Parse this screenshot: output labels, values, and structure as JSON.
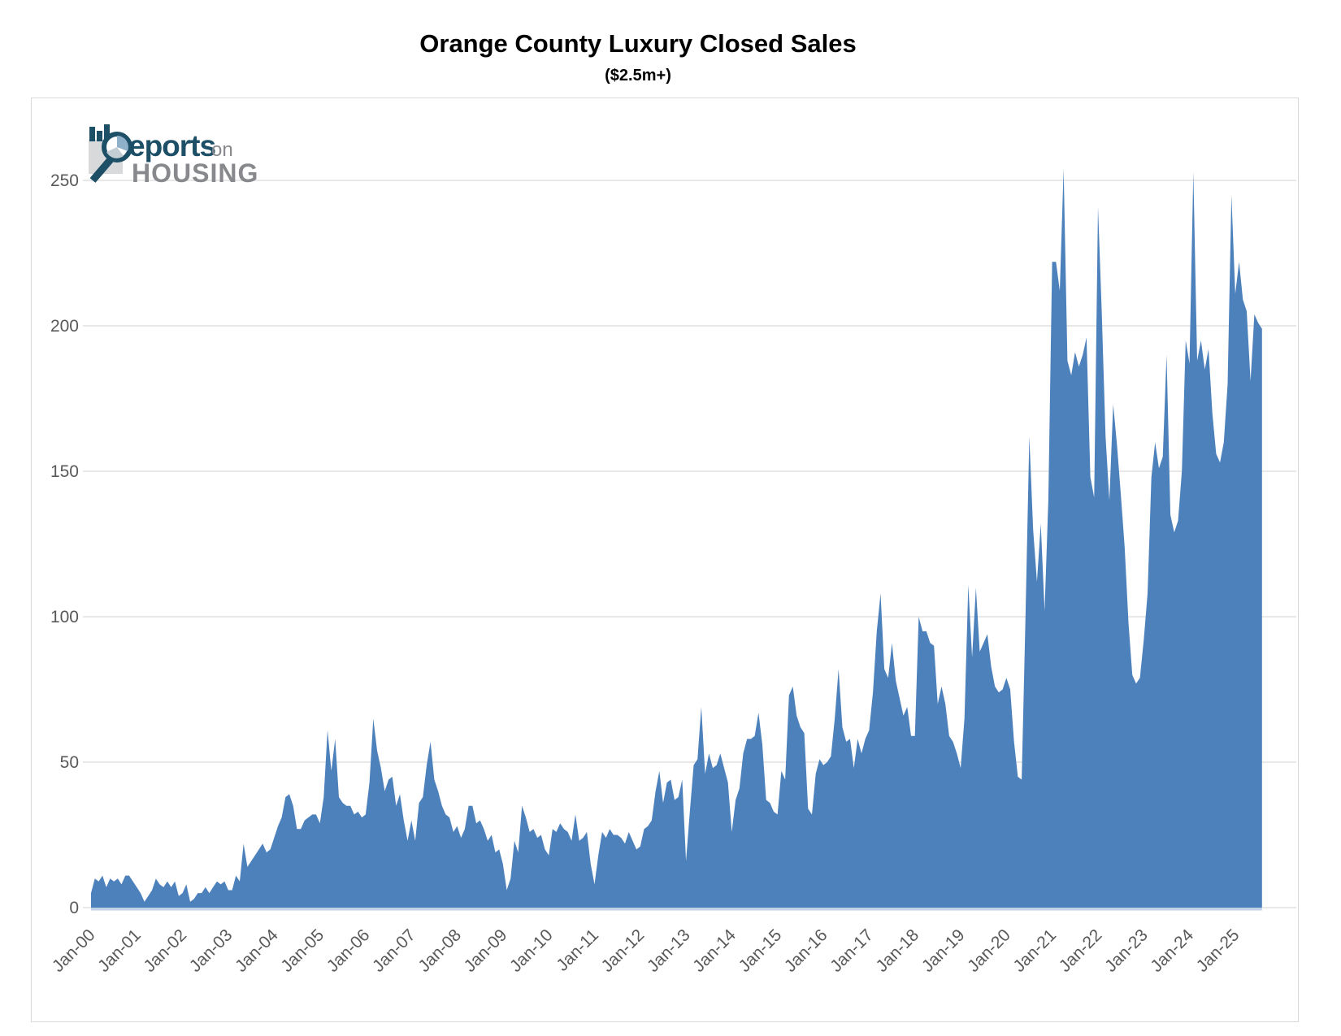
{
  "title": "Orange County Luxury Closed Sales",
  "subtitle": "($2.5m+)",
  "logo": {
    "word_top": "eports",
    "word_top_suffix": "on",
    "word_bottom": "HOUSING",
    "navy": "#1d4f66",
    "gray": "#87898c",
    "light_blue": "#8fb0c9",
    "square_gray": "#d8d9da"
  },
  "chart_data": {
    "type": "area",
    "series_name": "Luxury closed sales ($2.5m+), monthly",
    "fill_color": "#4d81bc",
    "baseline_shadow_color": "#b4c9e2",
    "grid": true,
    "grid_color": "#d9d9d9",
    "axis_label_color": "#595959",
    "frequency": "monthly",
    "start": "Jan-2000",
    "end": "Aug-2025",
    "x_tick_labels": [
      "Jan-00",
      "Jan-01",
      "Jan-02",
      "Jan-03",
      "Jan-04",
      "Jan-05",
      "Jan-06",
      "Jan-07",
      "Jan-08",
      "Jan-09",
      "Jan-10",
      "Jan-11",
      "Jan-12",
      "Jan-13",
      "Jan-14",
      "Jan-15",
      "Jan-16",
      "Jan-17",
      "Jan-18",
      "Jan-19",
      "Jan-20",
      "Jan-21",
      "Jan-22",
      "Jan-23",
      "Jan-24",
      "Jan-25"
    ],
    "y_ticks": [
      0,
      50,
      100,
      150,
      200,
      250
    ],
    "ylim": [
      0,
      260
    ],
    "values": [
      5,
      10,
      9,
      11,
      7,
      10,
      9,
      10,
      8,
      11,
      11,
      9,
      7,
      5,
      2,
      4,
      6,
      10,
      8,
      7,
      9,
      7,
      9,
      4,
      5,
      8,
      2,
      3,
      5,
      5,
      7,
      5,
      7,
      9,
      8,
      9,
      6,
      6,
      11,
      9,
      22,
      14,
      16,
      18,
      20,
      22,
      19,
      20,
      24,
      28,
      31,
      38,
      39,
      35,
      27,
      27,
      30,
      31,
      32,
      32,
      29,
      38,
      61,
      47,
      58,
      38,
      36,
      35,
      35,
      32,
      33,
      31,
      32,
      43,
      65,
      54,
      48,
      40,
      44,
      45,
      35,
      39,
      30,
      23,
      30,
      23,
      36,
      38,
      49,
      57,
      44,
      40,
      35,
      32,
      31,
      26,
      28,
      24,
      27,
      35,
      35,
      29,
      30,
      27,
      23,
      25,
      19,
      20,
      15,
      6,
      10,
      23,
      19,
      35,
      31,
      26,
      27,
      24,
      25,
      20,
      18,
      27,
      26,
      29,
      27,
      26,
      23,
      32,
      23,
      24,
      26,
      15,
      8,
      18,
      26,
      24,
      27,
      25,
      25,
      24,
      22,
      26,
      23,
      20,
      21,
      27,
      28,
      30,
      40,
      47,
      36,
      43,
      44,
      37,
      38,
      44,
      16,
      33,
      49,
      51,
      69,
      46,
      53,
      48,
      49,
      53,
      48,
      43,
      26,
      37,
      41,
      53,
      58,
      58,
      59,
      67,
      56,
      37,
      36,
      33,
      32,
      47,
      44,
      73,
      76,
      66,
      62,
      60,
      34,
      32,
      46,
      51,
      49,
      50,
      52,
      65,
      82,
      62,
      57,
      58,
      48,
      58,
      53,
      58,
      61,
      74,
      95,
      108,
      82,
      79,
      91,
      78,
      72,
      66,
      69,
      59,
      59,
      100,
      95,
      95,
      91,
      90,
      70,
      76,
      70,
      59,
      57,
      53,
      48,
      65,
      111,
      86,
      110,
      88,
      91,
      94,
      83,
      76,
      74,
      75,
      79,
      75,
      57,
      45,
      44,
      100,
      162,
      130,
      112,
      132,
      102,
      140,
      222,
      222,
      212,
      254,
      188,
      183,
      191,
      186,
      190,
      196,
      148,
      141,
      241,
      205,
      162,
      140,
      173,
      159,
      142,
      124,
      98,
      80,
      77,
      79,
      92,
      108,
      148,
      160,
      151,
      155,
      190,
      135,
      129,
      133,
      150,
      195,
      187,
      253,
      188,
      195,
      185,
      192,
      170,
      156,
      153,
      160,
      180,
      245,
      211,
      222,
      209,
      205,
      181,
      204,
      201,
      199
    ]
  }
}
